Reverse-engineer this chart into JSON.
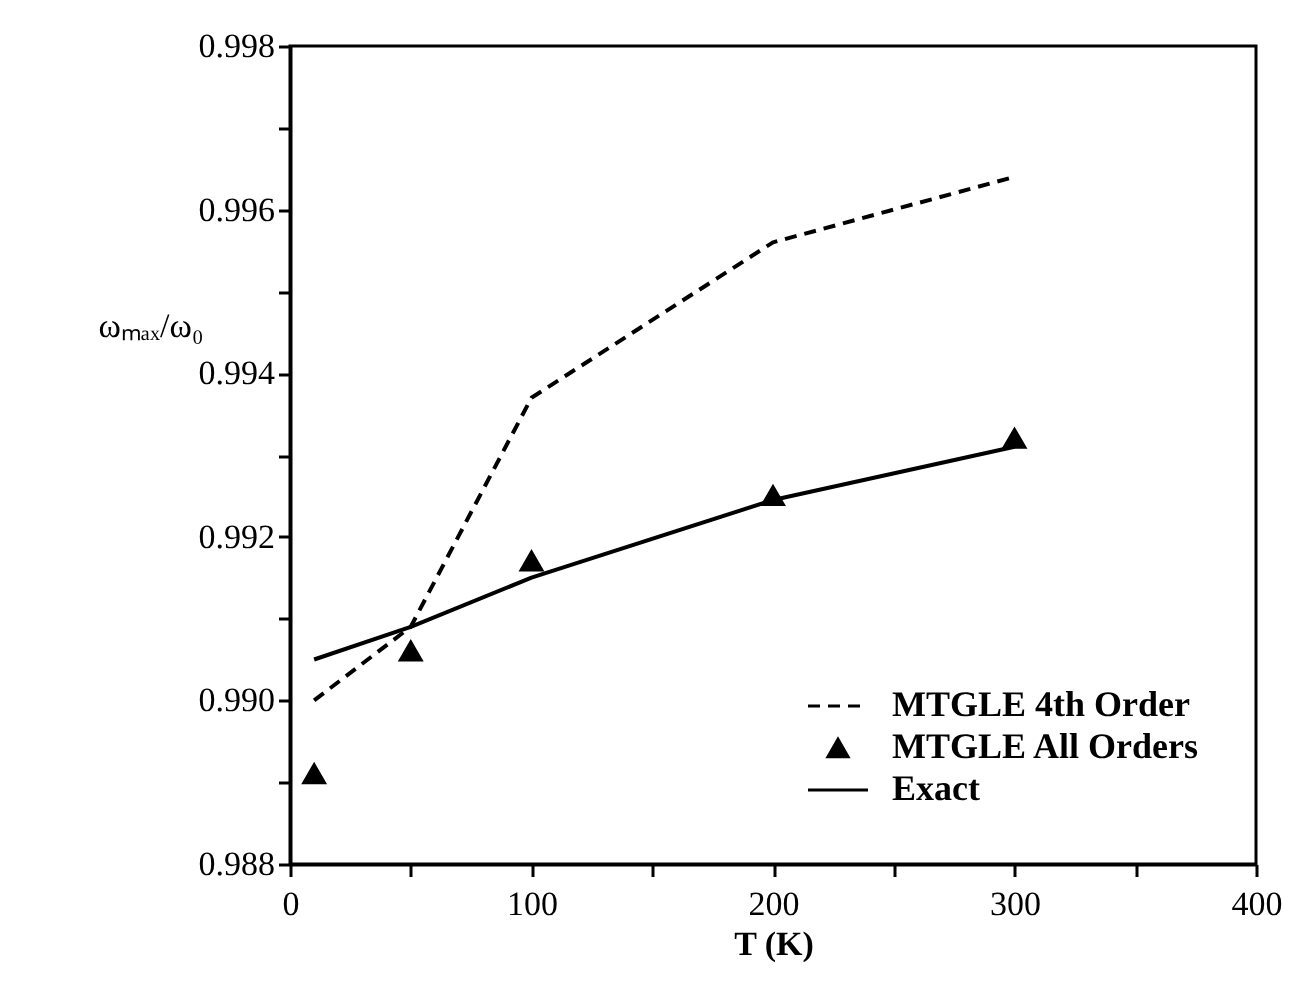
{
  "chart_data": {
    "type": "line",
    "xlabel": "T (K)",
    "ylabel": "ωₘₐₓ/ω₀",
    "xlim": [
      0,
      400
    ],
    "xticks": [
      0,
      {
        "value": 50,
        "label": null
      },
      100,
      {
        "value": 150,
        "label": null
      },
      200,
      {
        "value": 250,
        "label": null
      },
      300,
      {
        "value": 350,
        "label": null
      },
      400
    ],
    "ylim": [
      0.988,
      0.998
    ],
    "yticks": [
      0.988,
      {
        "value": 0.989,
        "label": null
      },
      {
        "value": 0.99,
        "label": "0.990"
      },
      {
        "value": 0.991,
        "label": null
      },
      0.992,
      {
        "value": 0.993,
        "label": null
      },
      0.994,
      {
        "value": 0.995,
        "label": null
      },
      0.996,
      {
        "value": 0.997,
        "label": null
      },
      0.998
    ],
    "grid": false,
    "legend": "bottom right",
    "series": [
      {
        "name": "MTGLE 4th Order",
        "line_style": "dashed",
        "color": "#000000",
        "x": [
          10,
          50,
          100,
          200,
          300
        ],
        "values": [
          0.99,
          0.9909,
          0.9937,
          0.9956,
          0.9964
        ]
      },
      {
        "name": "MTGLE All Orders",
        "type": "scatter",
        "marker": "triangle",
        "color": "#000000",
        "x": [
          10,
          50,
          100,
          200,
          300
        ],
        "values": [
          0.9891,
          0.9906,
          0.9917,
          0.9925,
          0.9932
        ]
      },
      {
        "name": "Exact",
        "line_style": "solid",
        "color": "#000000",
        "x": [
          10,
          50,
          100,
          200,
          300
        ],
        "values": [
          0.9905,
          0.9909,
          0.9915,
          0.99245,
          0.9931
        ]
      }
    ]
  }
}
